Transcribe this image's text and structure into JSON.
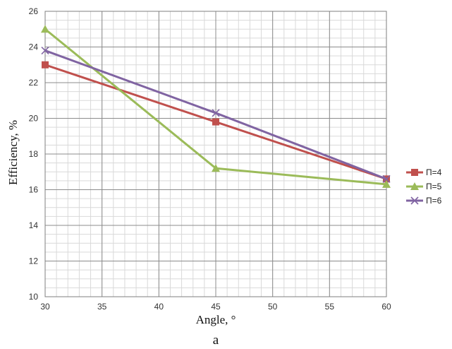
{
  "chart_data": {
    "type": "line",
    "title": "",
    "xlabel": "Angle, °",
    "ylabel": "Efficiency, %",
    "caption": "a",
    "xlim": [
      30,
      60
    ],
    "ylim": [
      10,
      26
    ],
    "x_ticks": [
      30,
      35,
      40,
      45,
      50,
      55,
      60
    ],
    "y_ticks": [
      10,
      12,
      14,
      16,
      18,
      20,
      22,
      24,
      26
    ],
    "grid": true,
    "legend_position": "right",
    "x": [
      30,
      45,
      60
    ],
    "series": [
      {
        "name": "Π=4",
        "values": [
          23.0,
          19.8,
          16.6
        ],
        "color": "#c0504d",
        "marker": "square"
      },
      {
        "name": "Π=5",
        "values": [
          25.0,
          17.2,
          16.3
        ],
        "color": "#9bbb59",
        "marker": "triangle"
      },
      {
        "name": "Π=6",
        "values": [
          23.8,
          20.3,
          16.6
        ],
        "color": "#8064a2",
        "marker": "cross"
      }
    ]
  }
}
